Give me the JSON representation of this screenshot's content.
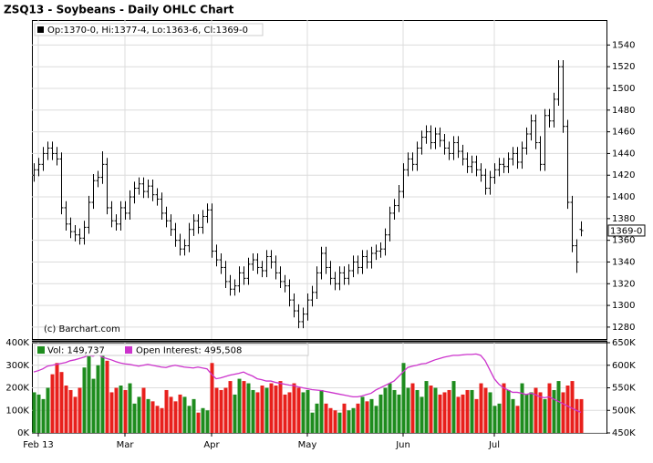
{
  "chart_data": [
    {
      "type": "ohlc",
      "title": "ZSQ13 - Soybeans - Daily OHLC Chart",
      "legend": "Op:1370-0, Hi:1377-4, Lo:1363-6, Cl:1369-0",
      "credit": "(c) Barchart.com",
      "last_label": "1369-0",
      "color": "#000000",
      "open": [
        1420,
        1425,
        1430,
        1440,
        1445,
        1440,
        1435,
        1390,
        1375,
        1368,
        1365,
        1362,
        1372,
        1395,
        1415,
        1418,
        1430,
        1390,
        1378,
        1375,
        1390,
        1385,
        1400,
        1408,
        1412,
        1405,
        1410,
        1402,
        1398,
        1385,
        1378,
        1370,
        1360,
        1352,
        1355,
        1370,
        1378,
        1372,
        1382,
        1388,
        1350,
        1342,
        1335,
        1322,
        1315,
        1318,
        1330,
        1325,
        1338,
        1342,
        1335,
        1332,
        1345,
        1340,
        1330,
        1322,
        1318,
        1305,
        1295,
        1285,
        1292,
        1305,
        1312,
        1330,
        1348,
        1335,
        1325,
        1320,
        1330,
        1325,
        1332,
        1340,
        1335,
        1345,
        1340,
        1348,
        1350,
        1352,
        1365,
        1385,
        1392,
        1405,
        1425,
        1435,
        1430,
        1445,
        1455,
        1460,
        1450,
        1458,
        1452,
        1445,
        1440,
        1450,
        1442,
        1435,
        1428,
        1432,
        1425,
        1420,
        1408,
        1418,
        1425,
        1430,
        1428,
        1435,
        1440,
        1432,
        1445,
        1458,
        1470,
        1450,
        1430,
        1475,
        1470,
        1490,
        1520,
        1465,
        1395,
        1355,
        1370
      ],
      "high": [
        1431,
        1436,
        1446,
        1451,
        1451,
        1446,
        1441,
        1396,
        1381,
        1374,
        1371,
        1378,
        1401,
        1421,
        1424,
        1442,
        1436,
        1396,
        1384,
        1396,
        1396,
        1406,
        1414,
        1418,
        1418,
        1416,
        1416,
        1408,
        1404,
        1391,
        1384,
        1376,
        1366,
        1361,
        1376,
        1384,
        1384,
        1388,
        1394,
        1394,
        1356,
        1348,
        1341,
        1328,
        1324,
        1336,
        1336,
        1344,
        1348,
        1348,
        1341,
        1351,
        1351,
        1346,
        1336,
        1328,
        1324,
        1311,
        1301,
        1298,
        1311,
        1318,
        1336,
        1354,
        1354,
        1341,
        1331,
        1336,
        1336,
        1338,
        1346,
        1346,
        1351,
        1351,
        1354,
        1356,
        1358,
        1371,
        1391,
        1398,
        1411,
        1431,
        1441,
        1441,
        1451,
        1461,
        1466,
        1466,
        1464,
        1464,
        1458,
        1451,
        1456,
        1456,
        1448,
        1441,
        1438,
        1438,
        1431,
        1426,
        1424,
        1431,
        1436,
        1436,
        1441,
        1446,
        1446,
        1451,
        1464,
        1476,
        1476,
        1456,
        1481,
        1481,
        1496,
        1526,
        1526,
        1471,
        1401,
        1361,
        1377.5
      ],
      "low": [
        1414,
        1419,
        1424,
        1434,
        1434,
        1429,
        1384,
        1369,
        1362,
        1359,
        1356,
        1356,
        1366,
        1389,
        1409,
        1412,
        1384,
        1372,
        1369,
        1369,
        1379,
        1379,
        1394,
        1402,
        1399,
        1399,
        1396,
        1392,
        1379,
        1372,
        1364,
        1354,
        1346,
        1346,
        1349,
        1364,
        1366,
        1366,
        1376,
        1344,
        1336,
        1329,
        1316,
        1309,
        1309,
        1312,
        1319,
        1319,
        1332,
        1329,
        1326,
        1326,
        1334,
        1324,
        1316,
        1312,
        1299,
        1289,
        1279,
        1279,
        1286,
        1299,
        1306,
        1324,
        1329,
        1319,
        1314,
        1314,
        1319,
        1319,
        1326,
        1329,
        1329,
        1334,
        1334,
        1342,
        1344,
        1346,
        1359,
        1379,
        1386,
        1399,
        1419,
        1424,
        1424,
        1439,
        1449,
        1444,
        1444,
        1446,
        1439,
        1434,
        1434,
        1436,
        1429,
        1422,
        1422,
        1419,
        1414,
        1402,
        1402,
        1412,
        1419,
        1422,
        1422,
        1429,
        1426,
        1426,
        1439,
        1452,
        1444,
        1424,
        1424,
        1464,
        1464,
        1484,
        1459,
        1389,
        1349,
        1330,
        1363.75
      ],
      "close": [
        1425,
        1430,
        1440,
        1445,
        1440,
        1435,
        1390,
        1375,
        1368,
        1365,
        1362,
        1372,
        1395,
        1415,
        1418,
        1430,
        1390,
        1378,
        1375,
        1390,
        1385,
        1400,
        1408,
        1412,
        1405,
        1410,
        1402,
        1398,
        1385,
        1378,
        1370,
        1360,
        1352,
        1355,
        1370,
        1378,
        1372,
        1382,
        1388,
        1350,
        1342,
        1335,
        1322,
        1315,
        1318,
        1330,
        1325,
        1338,
        1342,
        1335,
        1332,
        1345,
        1340,
        1330,
        1322,
        1318,
        1305,
        1295,
        1285,
        1292,
        1305,
        1312,
        1330,
        1348,
        1335,
        1325,
        1320,
        1330,
        1325,
        1332,
        1340,
        1335,
        1345,
        1340,
        1348,
        1350,
        1352,
        1365,
        1385,
        1392,
        1405,
        1425,
        1435,
        1430,
        1445,
        1455,
        1460,
        1450,
        1458,
        1452,
        1445,
        1440,
        1450,
        1442,
        1435,
        1428,
        1432,
        1425,
        1420,
        1408,
        1418,
        1425,
        1430,
        1428,
        1435,
        1440,
        1432,
        1445,
        1458,
        1470,
        1450,
        1430,
        1475,
        1470,
        1490,
        1520,
        1465,
        1395,
        1355,
        1340,
        1369
      ],
      "ylim": [
        1269,
        1563
      ],
      "yticks": [
        1280,
        1300,
        1320,
        1340,
        1360,
        1380,
        1400,
        1420,
        1440,
        1460,
        1480,
        1500,
        1520,
        1540
      ],
      "grid": true
    },
    {
      "type": "volume",
      "series": [
        {
          "name": "Vol: 149,737",
          "color": "#1e8c1e",
          "down_color": "#e8201c",
          "values": [
            180000,
            170000,
            150000,
            200000,
            260000,
            310000,
            270000,
            210000,
            190000,
            160000,
            200000,
            290000,
            340000,
            240000,
            300000,
            370000,
            320000,
            180000,
            200000,
            210000,
            190000,
            220000,
            130000,
            160000,
            200000,
            150000,
            140000,
            120000,
            110000,
            190000,
            160000,
            140000,
            170000,
            160000,
            120000,
            150000,
            90000,
            110000,
            100000,
            310000,
            200000,
            190000,
            200000,
            230000,
            170000,
            240000,
            230000,
            220000,
            190000,
            180000,
            210000,
            200000,
            220000,
            210000,
            230000,
            170000,
            180000,
            220000,
            200000,
            180000,
            190000,
            90000,
            130000,
            190000,
            130000,
            110000,
            100000,
            90000,
            130000,
            100000,
            110000,
            130000,
            160000,
            140000,
            150000,
            120000,
            170000,
            200000,
            220000,
            190000,
            170000,
            310000,
            200000,
            220000,
            190000,
            160000,
            230000,
            210000,
            200000,
            170000,
            180000,
            190000,
            230000,
            160000,
            170000,
            190000,
            190000,
            150000,
            220000,
            200000,
            180000,
            120000,
            130000,
            220000,
            190000,
            150000,
            120000,
            220000,
            170000,
            180000,
            200000,
            180000,
            150000,
            220000,
            190000,
            230000,
            180000,
            210000,
            230000,
            150000,
            149737
          ]
        },
        {
          "name": "Open Interest: 495,508",
          "color": "#cc33cc",
          "axis": "y2",
          "values": [
            585000,
            588000,
            592000,
            598000,
            600000,
            602000,
            604000,
            606000,
            610000,
            612000,
            615000,
            618000,
            622000,
            620000,
            625000,
            618000,
            615000,
            612000,
            608000,
            605000,
            603000,
            602000,
            600000,
            598000,
            600000,
            602000,
            600000,
            598000,
            596000,
            595000,
            598000,
            600000,
            598000,
            596000,
            595000,
            594000,
            596000,
            594000,
            592000,
            580000,
            570000,
            572000,
            575000,
            578000,
            580000,
            582000,
            585000,
            580000,
            576000,
            570000,
            568000,
            565000,
            565000,
            562000,
            560000,
            558000,
            556000,
            555000,
            552000,
            550000,
            548000,
            546000,
            545000,
            544000,
            542000,
            540000,
            538000,
            536000,
            534000,
            532000,
            530000,
            530000,
            532000,
            535000,
            538000,
            545000,
            550000,
            555000,
            560000,
            565000,
            575000,
            585000,
            595000,
            598000,
            600000,
            603000,
            604000,
            608000,
            612000,
            615000,
            618000,
            620000,
            622000,
            622000,
            623000,
            624000,
            624000,
            625000,
            622000,
            610000,
            590000,
            570000,
            558000,
            550000,
            545000,
            540000,
            540000,
            538000,
            535000,
            538000,
            535000,
            530000,
            528000,
            530000,
            525000,
            520000,
            515000,
            510000,
            505000,
            500000,
            495508
          ]
        }
      ],
      "ylim": [
        0,
        400000
      ],
      "yticks": [
        {
          "value": 0,
          "label": "0K"
        },
        {
          "value": 100000,
          "label": "100K"
        },
        {
          "value": 200000,
          "label": "200K"
        },
        {
          "value": 300000,
          "label": "300K"
        },
        {
          "value": 400000,
          "label": "400K"
        }
      ],
      "y2lim": [
        450000,
        650000
      ],
      "y2ticks": [
        {
          "value": 450000,
          "label": "450K"
        },
        {
          "value": 500000,
          "label": "500K"
        },
        {
          "value": 550000,
          "label": "550K"
        },
        {
          "value": 600000,
          "label": "600K"
        },
        {
          "value": 650000,
          "label": "650K"
        }
      ],
      "xticks": [
        {
          "value": 1,
          "label": "Feb 13"
        },
        {
          "value": 20,
          "label": "Mar"
        },
        {
          "value": 39,
          "label": "Apr"
        },
        {
          "value": 60,
          "label": "May"
        },
        {
          "value": 81,
          "label": "Jun"
        },
        {
          "value": 101,
          "label": "Jul"
        }
      ],
      "grid": true
    }
  ]
}
